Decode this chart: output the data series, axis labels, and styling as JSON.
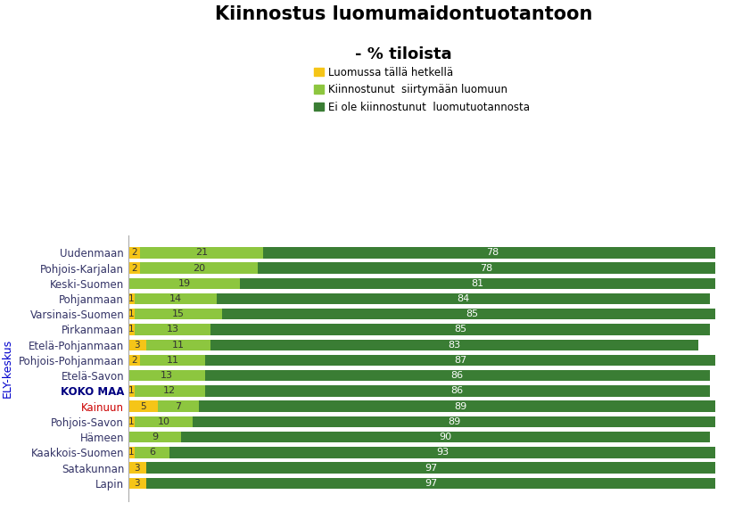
{
  "title_line1": "Kiinnostus luomumaidontuotantoon",
  "title_line2": "- % tiloista",
  "ylabel": "ELY-keskus",
  "legend_labels": [
    "Luomussa tällä hetkellä",
    "Kiinnostunut  siirtymään luomuun",
    "Ei ole kiinnostunut  luomutuotannosta"
  ],
  "colors": [
    "#f5c518",
    "#8dc63f",
    "#3a7d34"
  ],
  "categories": [
    "Uudenmaan",
    "Pohjois-Karjalan",
    "Keski-Suomen",
    "Pohjanmaan",
    "Varsinais-Suomen",
    "Pirkanmaan",
    "Etelä-Pohjanmaan",
    "Pohjois-Pohjanmaan",
    "Etelä-Savon",
    "KOKO MAA",
    "Kainuun",
    "Pohjois-Savon",
    "Hämeen",
    "Kaakkois-Suomen",
    "Satakunnan",
    "Lapin"
  ],
  "values": [
    [
      2,
      21,
      78
    ],
    [
      2,
      20,
      78
    ],
    [
      0,
      19,
      81
    ],
    [
      1,
      14,
      84
    ],
    [
      1,
      15,
      85
    ],
    [
      1,
      13,
      85
    ],
    [
      3,
      11,
      83
    ],
    [
      2,
      11,
      87
    ],
    [
      0,
      13,
      86
    ],
    [
      1,
      12,
      86
    ],
    [
      5,
      7,
      89
    ],
    [
      1,
      10,
      89
    ],
    [
      0,
      9,
      90
    ],
    [
      1,
      6,
      93
    ],
    [
      3,
      0,
      97
    ],
    [
      3,
      0,
      97
    ]
  ],
  "bar_labels": [
    [
      "2",
      "21",
      "78"
    ],
    [
      "2",
      "20",
      "78"
    ],
    [
      "",
      "19",
      "81"
    ],
    [
      "1",
      "14",
      "84"
    ],
    [
      "1",
      "15",
      "85"
    ],
    [
      "1",
      "13",
      "85"
    ],
    [
      "3",
      "11",
      "83"
    ],
    [
      "2",
      "11",
      "87"
    ],
    [
      "",
      "13",
      "86"
    ],
    [
      "1",
      "12",
      "86"
    ],
    [
      "5",
      "7",
      "89"
    ],
    [
      "1",
      "10",
      "89"
    ],
    [
      "",
      "9",
      "90"
    ],
    [
      "1",
      "6",
      "93"
    ],
    [
      "3",
      "",
      "97"
    ],
    [
      "3",
      "",
      "97"
    ]
  ],
  "background_color": "#ffffff",
  "title_color": "#000000",
  "ylabel_color": "#0000cc",
  "koko_maa_color": "#000080",
  "kainuun_color": "#cc0000",
  "legend_color1": "#f5c518",
  "legend_color2": "#8dc63f",
  "legend_color3": "#3a7d34",
  "seg0_text_color": "#333333",
  "seg1_text_color": "#333333",
  "seg2_text_color": "#ffffff"
}
